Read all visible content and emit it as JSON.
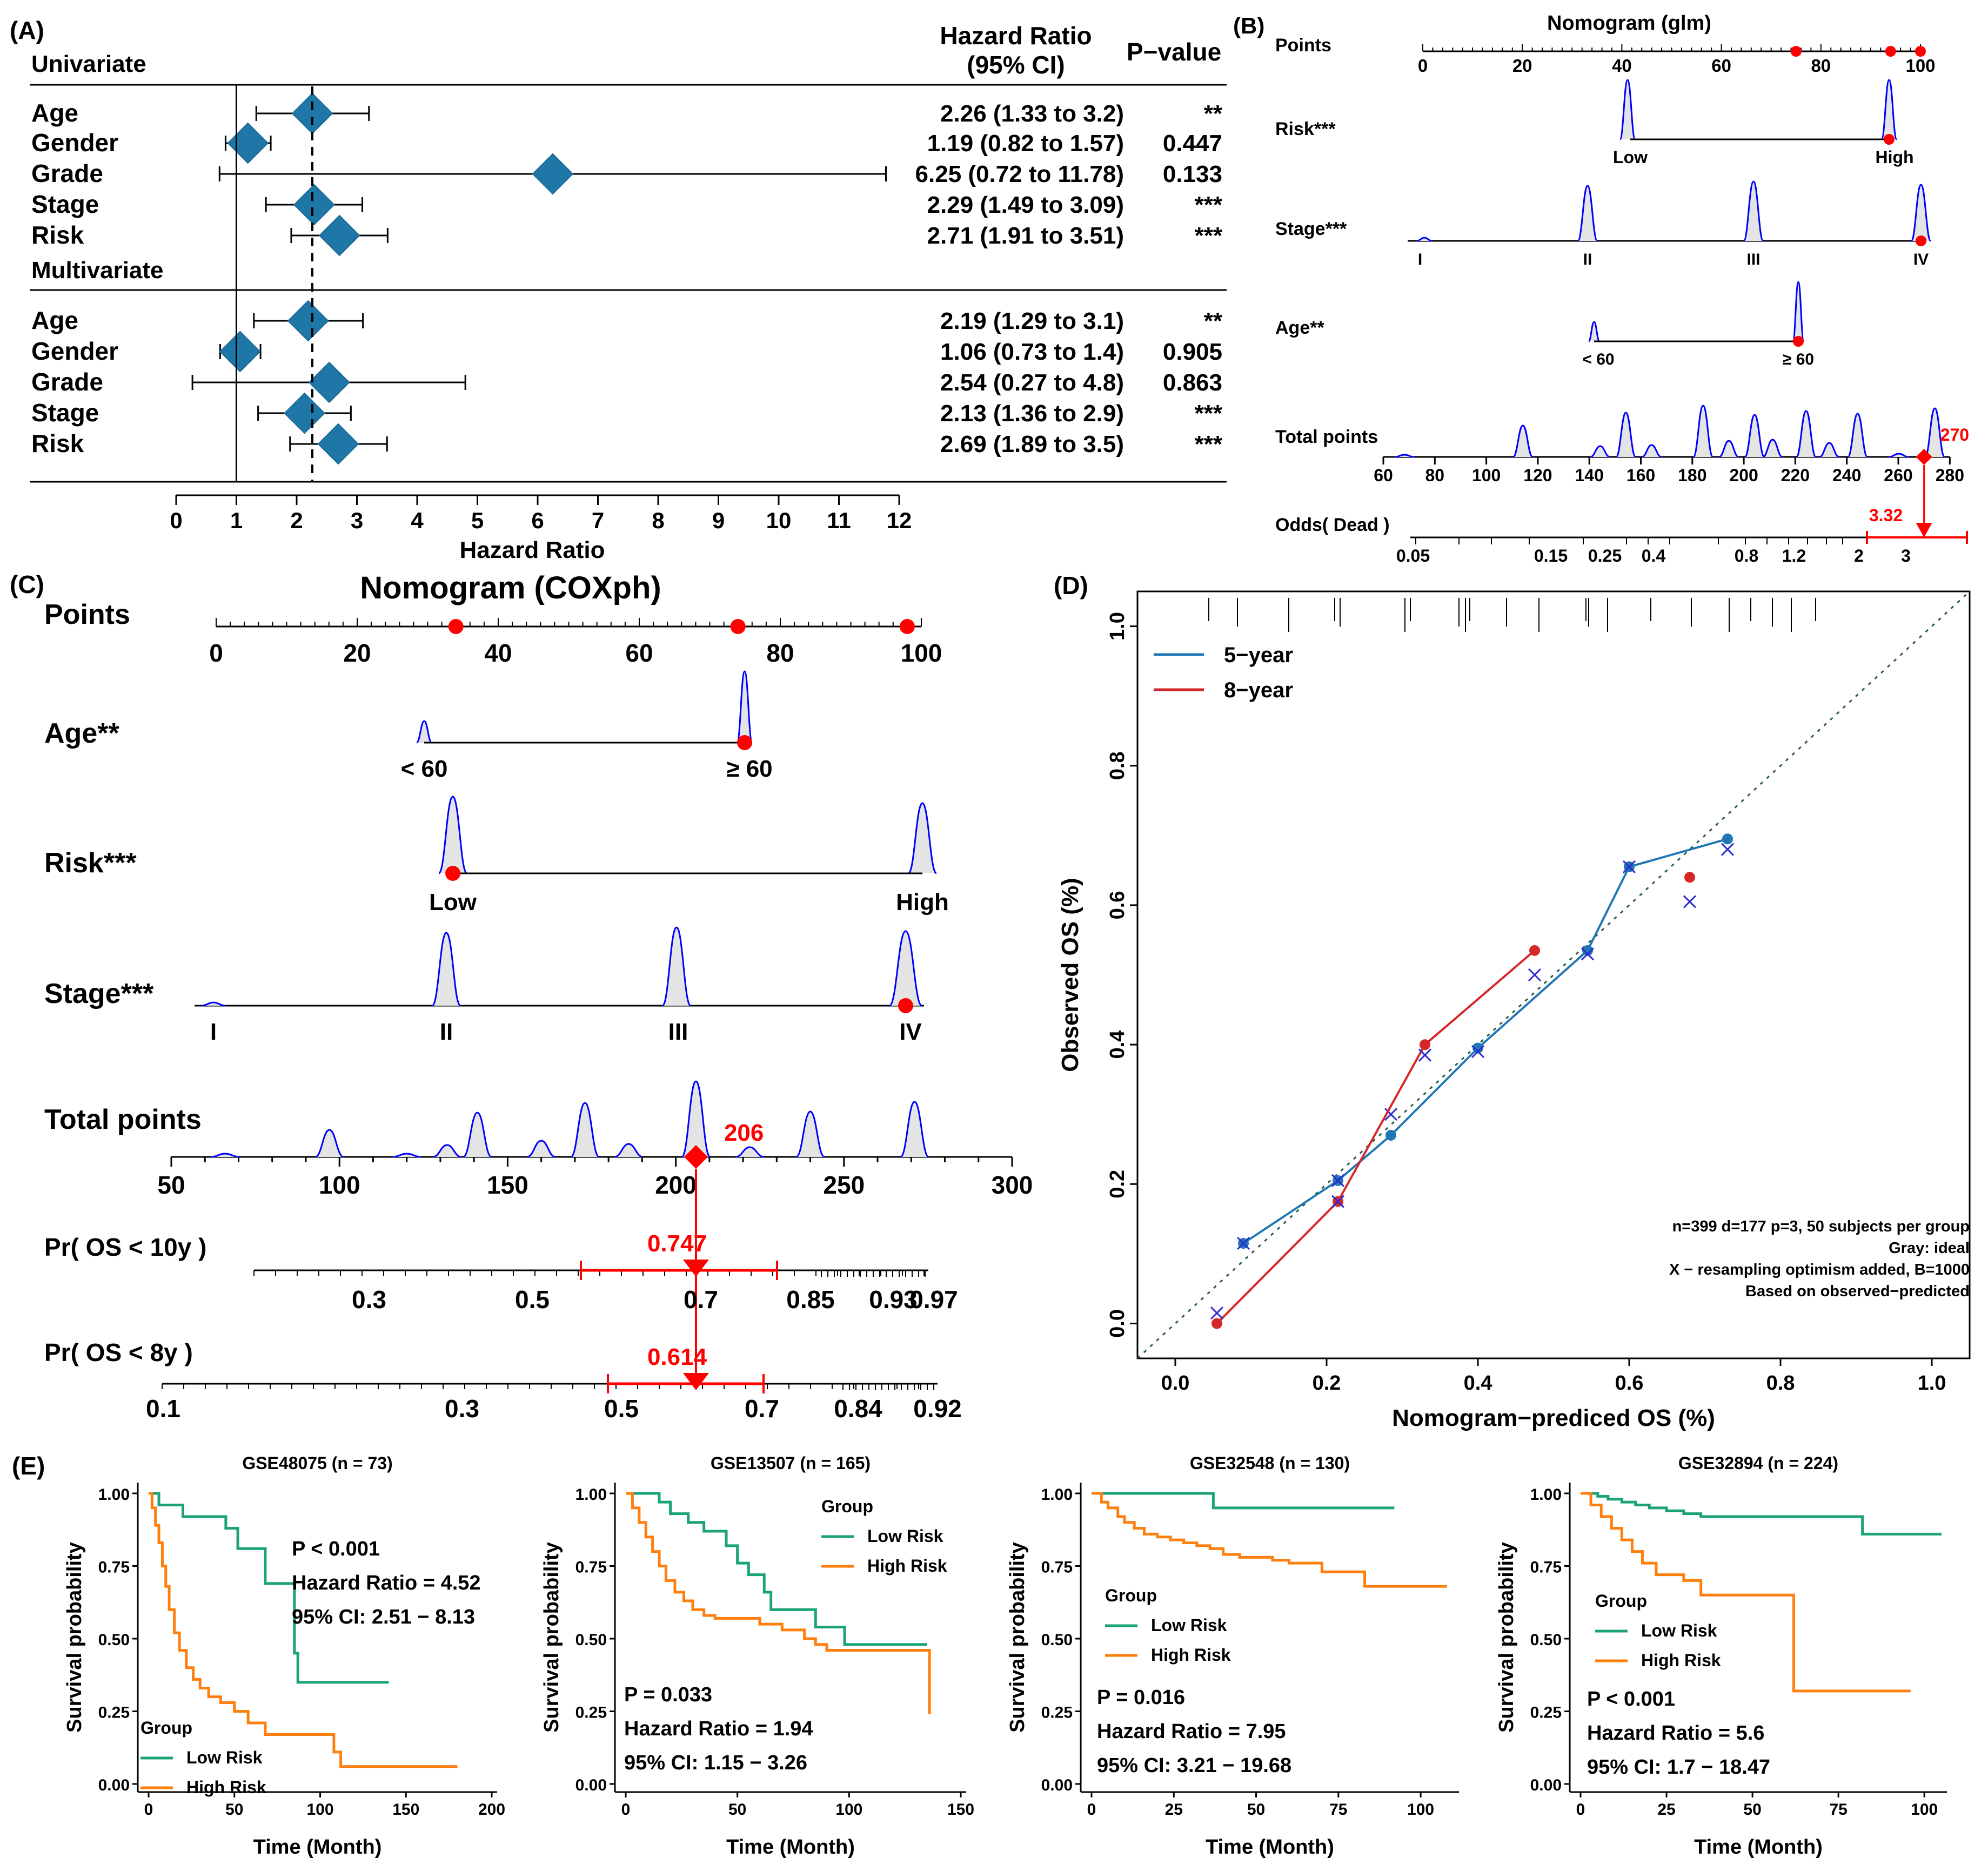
{
  "colors": {
    "diamond": "#1f77a8",
    "red": "#ff0000",
    "density": "#0000ff",
    "densityFill": "#e4e4e4",
    "cal5": "#1f77b4",
    "cal8": "#d62728",
    "lowRisk": "#1aa37a",
    "highRisk": "#ff7f0e"
  },
  "panelA": {
    "label": "(A)",
    "hrHeader": [
      "Hazard Ratio",
      "(95% CI)"
    ],
    "pHeader": "P−value",
    "sections": [
      {
        "title": "Univariate",
        "rows": [
          {
            "name": "Age",
            "hr": 2.26,
            "lo": 1.33,
            "hi": 3.2,
            "ci": "2.26 (1.33 to 3.2)",
            "p": "**"
          },
          {
            "name": "Gender",
            "hr": 1.19,
            "lo": 0.82,
            "hi": 1.57,
            "ci": "1.19 (0.82 to 1.57)",
            "p": "0.447"
          },
          {
            "name": "Grade",
            "hr": 6.25,
            "lo": 0.72,
            "hi": 11.78,
            "ci": "6.25 (0.72 to 11.78)",
            "p": "0.133"
          },
          {
            "name": "Stage",
            "hr": 2.29,
            "lo": 1.49,
            "hi": 3.09,
            "ci": "2.29 (1.49 to 3.09)",
            "p": "***"
          },
          {
            "name": "Risk",
            "hr": 2.71,
            "lo": 1.91,
            "hi": 3.51,
            "ci": "2.71 (1.91 to 3.51)",
            "p": "***"
          }
        ]
      },
      {
        "title": "Multivariate",
        "rows": [
          {
            "name": "Age",
            "hr": 2.19,
            "lo": 1.29,
            "hi": 3.1,
            "ci": "2.19 (1.29 to 3.1)",
            "p": "**"
          },
          {
            "name": "Gender",
            "hr": 1.06,
            "lo": 0.73,
            "hi": 1.4,
            "ci": "1.06 (0.73 to 1.4)",
            "p": "0.905"
          },
          {
            "name": "Grade",
            "hr": 2.54,
            "lo": 0.27,
            "hi": 4.8,
            "ci": "2.54 (0.27 to 4.8)",
            "p": "0.863"
          },
          {
            "name": "Stage",
            "hr": 2.13,
            "lo": 1.36,
            "hi": 2.9,
            "ci": "2.13 (1.36 to 2.9)",
            "p": "***"
          },
          {
            "name": "Risk",
            "hr": 2.69,
            "lo": 1.89,
            "hi": 3.5,
            "ci": "2.69 (1.89 to 3.5)",
            "p": "***"
          }
        ]
      }
    ],
    "xTicks": [
      "0",
      "1",
      "2",
      "3",
      "4",
      "5",
      "6",
      "7",
      "8",
      "9",
      "10",
      "11",
      "12"
    ],
    "xlabel": "Hazard Ratio",
    "refLine": 1,
    "dashLine": 2.26
  },
  "panelB": {
    "label": "(B)",
    "title": "Nomogram (glm)",
    "rows": [
      "Points",
      "Risk***",
      "Stage***",
      "Age**",
      "Total points",
      "Odds( Dead )"
    ],
    "pointsTicks": [
      "0",
      "20",
      "40",
      "60",
      "80",
      "100"
    ],
    "riskLabels": [
      "Low",
      "High"
    ],
    "stageLabels": [
      "I",
      "II",
      "III",
      "IV"
    ],
    "ageLabels": [
      "< 60",
      "≥ 60"
    ],
    "totalTicks": [
      "60",
      "80",
      "100",
      "120",
      "140",
      "160",
      "180",
      "200",
      "220",
      "240",
      "260",
      "280"
    ],
    "totalValue": "270",
    "oddsTicks": [
      "0.05",
      "0.15",
      "0.25",
      "0.4",
      "0.8",
      "1.2",
      "2",
      "3"
    ],
    "oddsValue": "3.32"
  },
  "panelC": {
    "label": "(C)",
    "title": "Nomogram (COXph)",
    "rows": [
      "Points",
      "Age**",
      "Risk***",
      "Stage***",
      "Total points",
      "Pr( OS < 10y )",
      "Pr( OS < 8y )"
    ],
    "pointsTicks": [
      "0",
      "20",
      "40",
      "60",
      "80",
      "100"
    ],
    "ageLabels": [
      "< 60",
      "≥ 60"
    ],
    "riskLabels": [
      "Low",
      "High"
    ],
    "stageLabels": [
      "I",
      "II",
      "III",
      "IV"
    ],
    "totalTicks": [
      "50",
      "100",
      "150",
      "200",
      "250",
      "300"
    ],
    "totalValue": "206",
    "os10Ticks": [
      "0.3",
      "0.5",
      "0.7",
      "0.85",
      "0.93",
      "0.97"
    ],
    "os10Value": "0.747",
    "os8Ticks": [
      "0.1",
      "0.3",
      "0.5",
      "0.7",
      "0.84",
      "0.92"
    ],
    "os8Value": "0.614"
  },
  "chart_data": [
    {
      "panel": "D",
      "type": "line",
      "label": "(D)",
      "xlabel": "Nomogram−prediced OS (%)",
      "ylabel": "Observed OS (%)",
      "xlim": [
        -0.05,
        1.05
      ],
      "ylim": [
        -0.05,
        1.05
      ],
      "xTicks": [
        "0.0",
        "0.2",
        "0.4",
        "0.6",
        "0.8",
        "1.0"
      ],
      "yTicks": [
        "0.0",
        "0.2",
        "0.4",
        "0.6",
        "0.8",
        "1.0"
      ],
      "series": [
        {
          "name": "5−year",
          "x": [
            0.09,
            0.215,
            0.285,
            0.4,
            0.545,
            0.6,
            0.73
          ],
          "y": [
            0.115,
            0.205,
            0.27,
            0.395,
            0.535,
            0.655,
            0.695
          ],
          "xCorrected": [
            0.09,
            0.215,
            0.285,
            0.4,
            0.545,
            0.6,
            0.73
          ],
          "yCorrected": [
            0.115,
            0.205,
            0.3,
            0.39,
            0.53,
            0.655,
            0.68
          ]
        },
        {
          "name": "8−year",
          "x": [
            0.055,
            0.215,
            0.33,
            0.475,
            0.68
          ],
          "y": [
            0.0,
            0.175,
            0.4,
            0.535,
            0.64
          ],
          "xCorrected": [
            0.055,
            0.215,
            0.33,
            0.475,
            0.68
          ],
          "yCorrected": [
            0.015,
            0.175,
            0.385,
            0.5,
            0.605
          ]
        }
      ],
      "notes": [
        "n=399 d=177 p=3, 50 subjects per group",
        "Gray: ideal",
        "X − resampling optimism added, B=1000",
        "Based on observed−predicted"
      ]
    },
    {
      "panel": "E1",
      "type": "line",
      "label": "(E)",
      "title": "GSE48075 (n = 73)",
      "xlabel": "Time (Month)",
      "ylabel": "Survival probability",
      "xlim": [
        0,
        200
      ],
      "ylim": [
        0,
        1
      ],
      "xTicks": [
        "0",
        "50",
        "100",
        "150",
        "200"
      ],
      "yTicks": [
        "0.00",
        "0.25",
        "0.50",
        "0.75",
        "1.00"
      ],
      "legendTitle": "Group",
      "legend": [
        "Low Risk",
        "High Risk"
      ],
      "stats": [
        "P < 0.001",
        "Hazard Ratio = 4.52",
        "95% CI: 2.51 − 8.13"
      ],
      "series": [
        {
          "name": "Low Risk",
          "x": [
            0,
            6,
            10,
            20,
            28,
            45,
            52,
            68,
            85,
            87,
            140
          ],
          "y": [
            1.0,
            0.96,
            0.96,
            0.92,
            0.92,
            0.88,
            0.81,
            0.69,
            0.45,
            0.35,
            0.35
          ]
        },
        {
          "name": "High Risk",
          "x": [
            0,
            2,
            4,
            6,
            8,
            10,
            12,
            15,
            18,
            22,
            26,
            30,
            35,
            42,
            50,
            58,
            68,
            88,
            108,
            112,
            180
          ],
          "y": [
            1.0,
            0.95,
            0.89,
            0.83,
            0.75,
            0.68,
            0.6,
            0.52,
            0.46,
            0.4,
            0.36,
            0.33,
            0.3,
            0.28,
            0.25,
            0.21,
            0.17,
            0.17,
            0.11,
            0.06,
            0.06
          ]
        }
      ]
    },
    {
      "panel": "E2",
      "type": "line",
      "title": "GSE13507 (n = 165)",
      "xlabel": "Time (Month)",
      "ylabel": "Survival probability",
      "xlim": [
        0,
        150
      ],
      "ylim": [
        0,
        1
      ],
      "xTicks": [
        "0",
        "50",
        "100",
        "150"
      ],
      "yTicks": [
        "0.00",
        "0.25",
        "0.50",
        "0.75",
        "1.00"
      ],
      "legendTitle": "Group",
      "legend": [
        "Low Risk",
        "High Risk"
      ],
      "stats": [
        "P = 0.033",
        "Hazard Ratio = 1.94",
        "95% CI: 1.15 − 3.26"
      ],
      "series": [
        {
          "name": "Low Risk",
          "x": [
            0,
            15,
            20,
            28,
            35,
            45,
            50,
            55,
            62,
            65,
            70,
            85,
            98,
            135
          ],
          "y": [
            1.0,
            0.97,
            0.93,
            0.9,
            0.87,
            0.82,
            0.76,
            0.72,
            0.66,
            0.6,
            0.6,
            0.54,
            0.48,
            0.48
          ]
        },
        {
          "name": "High Risk",
          "x": [
            0,
            3,
            6,
            9,
            12,
            15,
            18,
            22,
            26,
            30,
            35,
            40,
            50,
            60,
            70,
            80,
            85,
            90,
            135,
            136
          ],
          "y": [
            1.0,
            0.95,
            0.9,
            0.85,
            0.8,
            0.75,
            0.7,
            0.66,
            0.63,
            0.6,
            0.58,
            0.57,
            0.57,
            0.55,
            0.53,
            0.5,
            0.48,
            0.46,
            0.46,
            0.24
          ]
        }
      ]
    },
    {
      "panel": "E3",
      "type": "line",
      "title": "GSE32548 (n = 130)",
      "xlabel": "Time (Month)",
      "ylabel": "Survival probability",
      "xlim": [
        0,
        110
      ],
      "ylim": [
        0,
        1
      ],
      "xTicks": [
        "0",
        "25",
        "50",
        "75",
        "100"
      ],
      "yTicks": [
        "0.00",
        "0.25",
        "0.50",
        "0.75",
        "1.00"
      ],
      "legendTitle": "Group",
      "legend": [
        "Low Risk",
        "High Risk"
      ],
      "stats": [
        "P = 0.016",
        "Hazard Ratio = 7.95",
        "95% CI: 3.21 − 19.68"
      ],
      "series": [
        {
          "name": "Low Risk",
          "x": [
            0,
            36,
            37,
            92
          ],
          "y": [
            1.0,
            1.0,
            0.95,
            0.95
          ]
        },
        {
          "name": "High Risk",
          "x": [
            0,
            3,
            5,
            8,
            10,
            13,
            16,
            20,
            24,
            28,
            32,
            36,
            40,
            45,
            50,
            55,
            60,
            70,
            82,
            83,
            108
          ],
          "y": [
            1.0,
            0.97,
            0.95,
            0.92,
            0.9,
            0.88,
            0.86,
            0.85,
            0.84,
            0.83,
            0.82,
            0.81,
            0.79,
            0.78,
            0.78,
            0.77,
            0.76,
            0.73,
            0.73,
            0.68,
            0.68
          ]
        }
      ]
    },
    {
      "panel": "E4",
      "type": "line",
      "title": "GSE32894 (n = 224)",
      "xlabel": "Time (Month)",
      "ylabel": "Survival probability",
      "xlim": [
        0,
        105
      ],
      "ylim": [
        0,
        1
      ],
      "xTicks": [
        "0",
        "25",
        "50",
        "75",
        "100"
      ],
      "yTicks": [
        "0.00",
        "0.25",
        "0.50",
        "0.75",
        "1.00"
      ],
      "legendTitle": "Group",
      "legend": [
        "Low Risk",
        "High Risk"
      ],
      "stats": [
        "P < 0.001",
        "Hazard Ratio = 5.6",
        "95% CI: 1.7 − 18.47"
      ],
      "series": [
        {
          "name": "Low Risk",
          "x": [
            0,
            5,
            8,
            12,
            16,
            20,
            25,
            30,
            35,
            45,
            60,
            81,
            82,
            105
          ],
          "y": [
            1.0,
            0.99,
            0.98,
            0.97,
            0.96,
            0.95,
            0.94,
            0.93,
            0.92,
            0.92,
            0.92,
            0.92,
            0.86,
            0.86
          ]
        },
        {
          "name": "High Risk",
          "x": [
            0,
            3,
            6,
            9,
            12,
            15,
            18,
            22,
            26,
            30,
            35,
            40,
            50,
            60,
            62,
            96
          ],
          "y": [
            1.0,
            0.96,
            0.92,
            0.88,
            0.84,
            0.8,
            0.76,
            0.72,
            0.72,
            0.7,
            0.65,
            0.65,
            0.65,
            0.65,
            0.32,
            0.32
          ]
        }
      ]
    }
  ]
}
